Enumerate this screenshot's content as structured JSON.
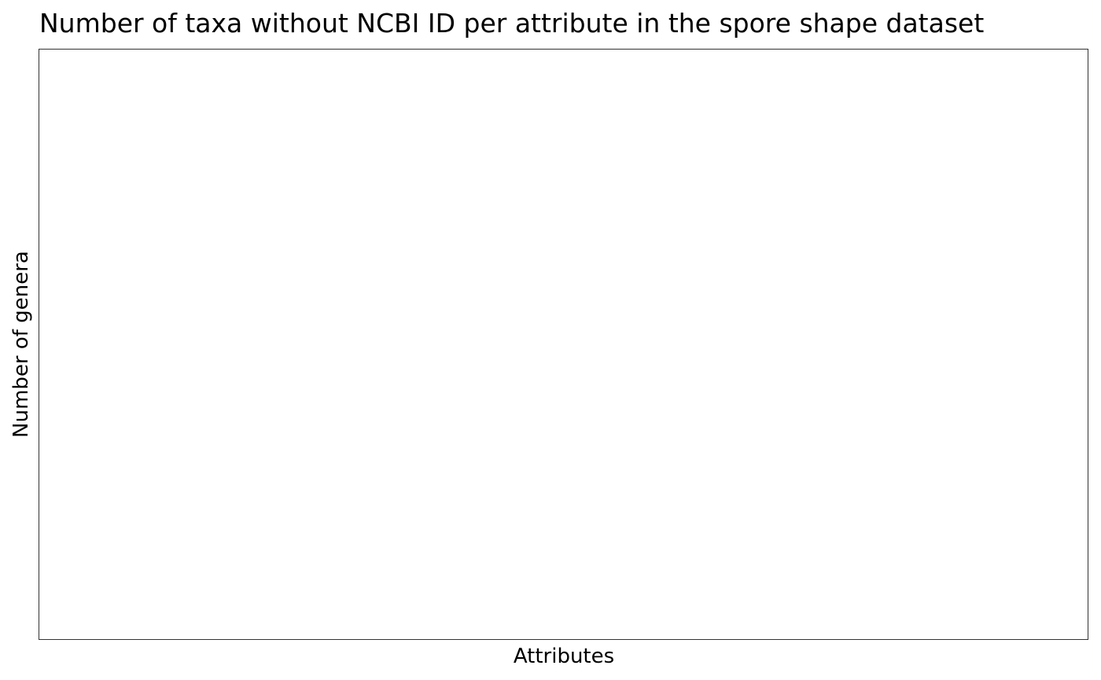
{
  "chart_data": {
    "type": "bar",
    "title": "Number of taxa without NCBI ID per attribute in the spore shape dataset",
    "xlabel": "Attributes",
    "ylabel": "Number of genera",
    "categories": [],
    "values": [],
    "grid": false,
    "legend": "none"
  }
}
